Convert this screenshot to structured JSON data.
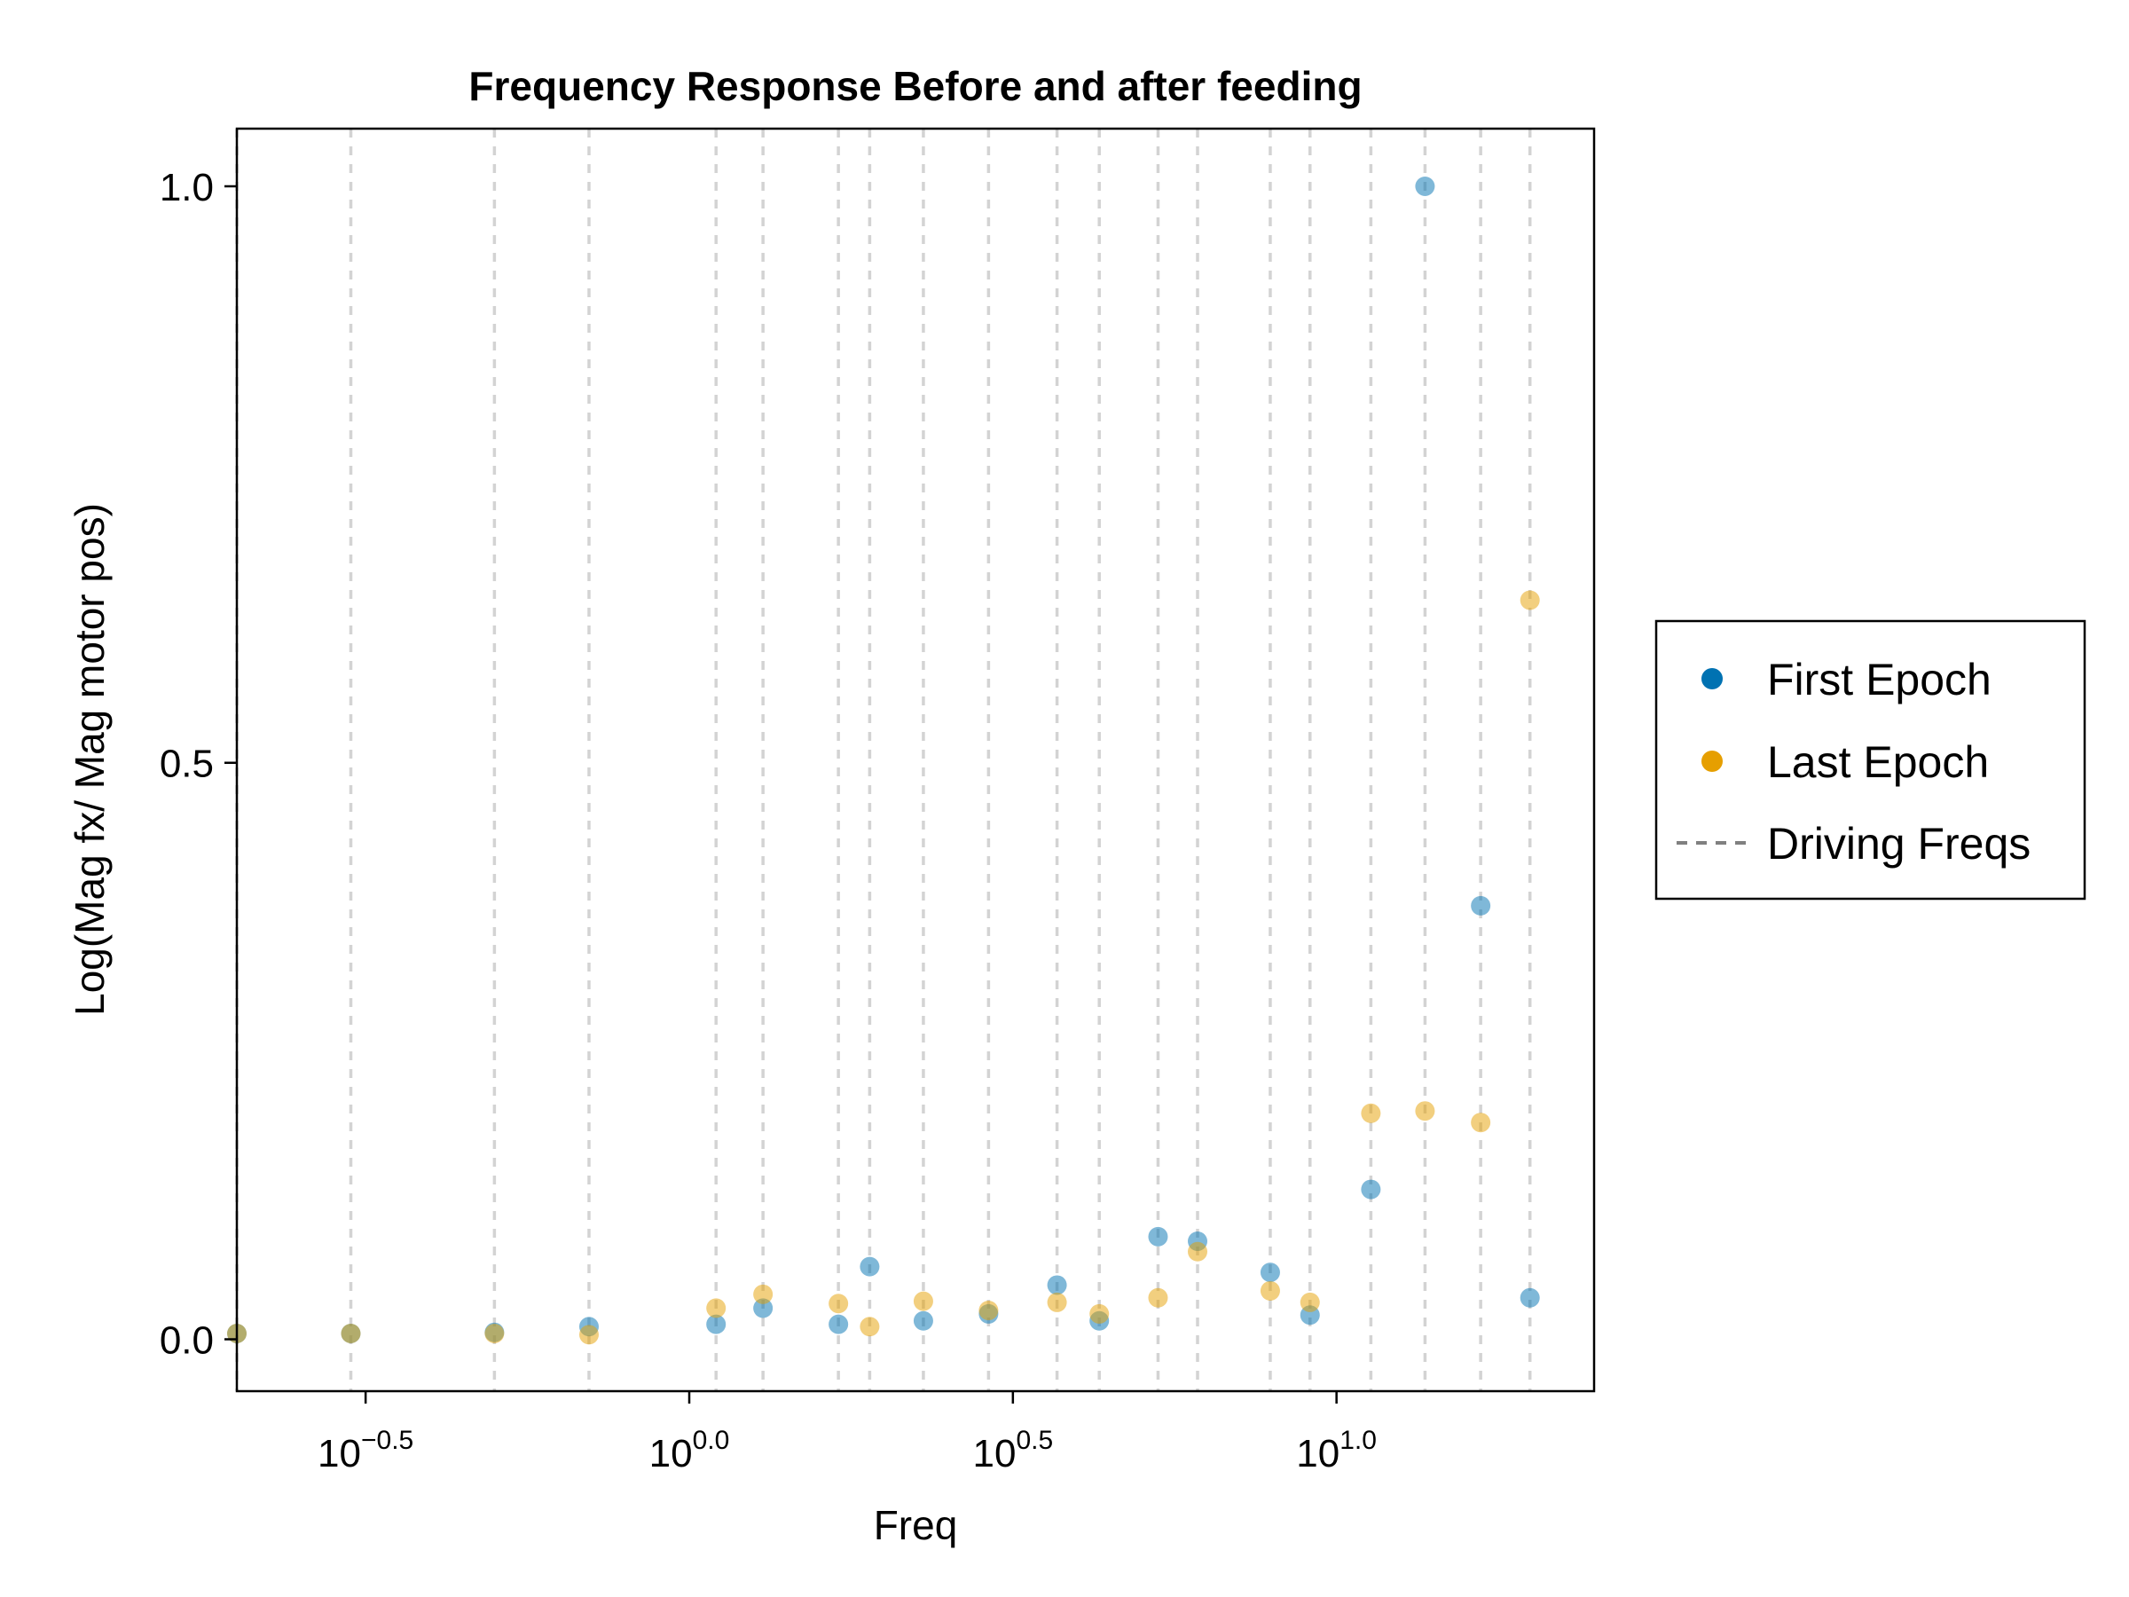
{
  "chart_data": {
    "type": "scatter",
    "title": "Frequency Response Before and after feeding",
    "xlabel": "Freq",
    "ylabel": "Log(Mag fx/ Mag motor pos)",
    "xscale": "log10",
    "xlim": [
      0.2,
      25.0
    ],
    "ylim": [
      -0.045,
      1.05
    ],
    "x_ticks": [
      {
        "value": 0.3162,
        "base": "10",
        "exp": "−0.5"
      },
      {
        "value": 1.0,
        "base": "10",
        "exp": "0.0"
      },
      {
        "value": 3.1623,
        "base": "10",
        "exp": "0.5"
      },
      {
        "value": 10.0,
        "base": "10",
        "exp": "1.0"
      }
    ],
    "y_ticks": [
      {
        "value": 0.0,
        "label": "0.0"
      },
      {
        "value": 0.5,
        "label": "0.5"
      },
      {
        "value": 1.0,
        "label": "1.0"
      }
    ],
    "grid": false,
    "legend_position": "right",
    "driving_freqs": [
      0.2,
      0.3,
      0.5,
      0.7,
      1.1,
      1.3,
      1.7,
      1.9,
      2.3,
      2.9,
      3.7,
      4.3,
      5.3,
      6.1,
      7.9,
      9.1,
      11.3,
      13.7,
      16.7,
      19.9
    ],
    "series": [
      {
        "name": "First Epoch",
        "color": "#0072b2",
        "marker": "circle",
        "x": [
          0.2,
          0.3,
          0.5,
          0.7,
          1.1,
          1.3,
          1.7,
          1.9,
          2.3,
          2.9,
          3.7,
          4.3,
          5.3,
          6.1,
          7.9,
          9.1,
          11.3,
          13.7,
          16.7,
          19.9
        ],
        "y": [
          0.005,
          0.005,
          0.006,
          0.011,
          0.013,
          0.027,
          0.013,
          0.063,
          0.016,
          0.022,
          0.047,
          0.016,
          0.089,
          0.085,
          0.058,
          0.021,
          0.13,
          1.0,
          0.376,
          0.036
        ]
      },
      {
        "name": "Last Epoch",
        "color": "#e69f00",
        "marker": "circle",
        "x": [
          0.2,
          0.3,
          0.5,
          0.7,
          1.1,
          1.3,
          1.7,
          1.9,
          2.3,
          2.9,
          3.7,
          4.3,
          5.3,
          6.1,
          7.9,
          9.1,
          11.3,
          13.7,
          16.7,
          19.9
        ],
        "y": [
          0.005,
          0.005,
          0.005,
          0.004,
          0.027,
          0.039,
          0.031,
          0.011,
          0.033,
          0.025,
          0.032,
          0.022,
          0.036,
          0.076,
          0.042,
          0.032,
          0.196,
          0.198,
          0.188,
          0.641
        ]
      },
      {
        "name": "Driving Freqs",
        "color": "#808080",
        "marker": "dashed-line"
      }
    ]
  }
}
